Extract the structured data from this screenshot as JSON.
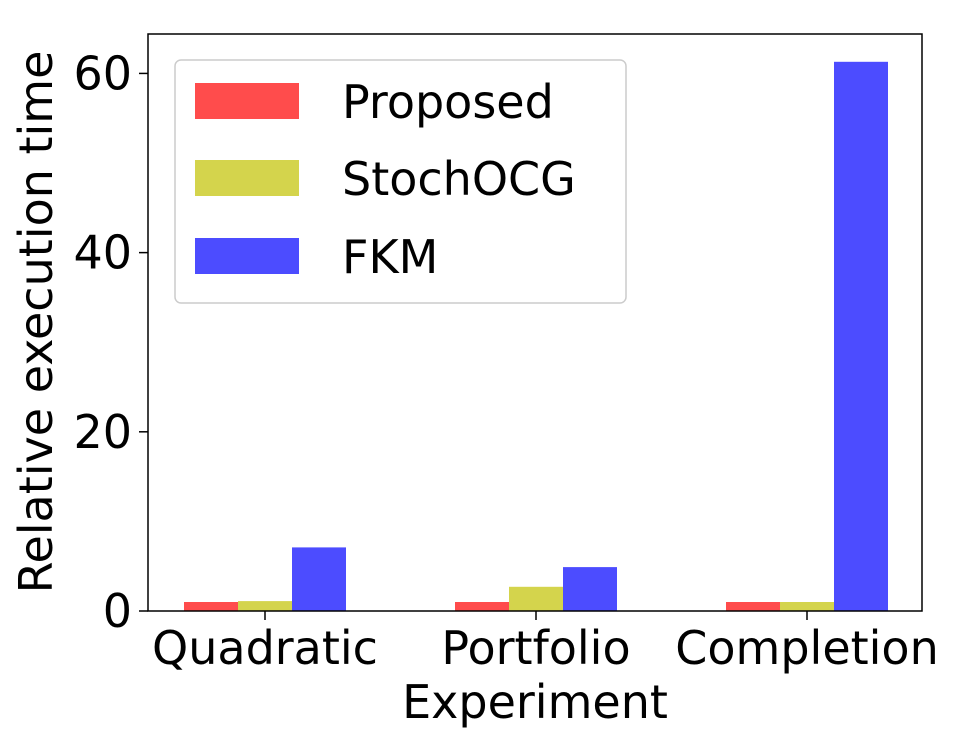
{
  "chart_data": {
    "type": "bar",
    "categories": [
      "Quadratic",
      "Portfolio",
      "Completion"
    ],
    "series": [
      {
        "name": "Proposed",
        "color": "#ff4c4c",
        "values": [
          1.0,
          1.0,
          1.0
        ]
      },
      {
        "name": "StochOCG",
        "color": "#d4d44c",
        "values": [
          1.1,
          2.7,
          1.0
        ]
      },
      {
        "name": "FKM",
        "color": "#4c4cff",
        "values": [
          7.1,
          4.9,
          61.3
        ]
      }
    ],
    "xlabel": "Experiment",
    "ylabel": "Relative execution time",
    "ylim": [
      0,
      64.4
    ],
    "yticks": [
      0,
      20,
      40,
      60
    ],
    "grid": false,
    "legend_position": "top-left"
  }
}
